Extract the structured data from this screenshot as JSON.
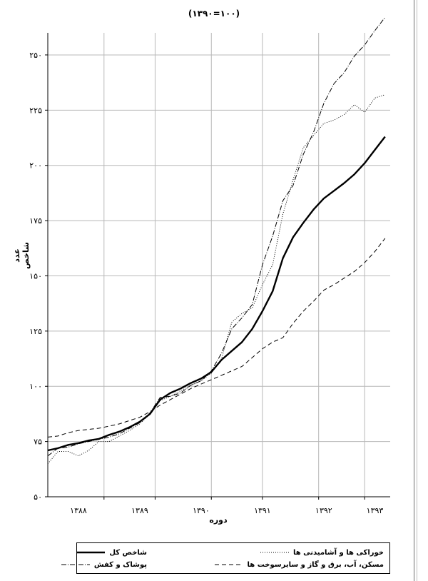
{
  "chart_data": {
    "type": "line",
    "title": "(۱۳۹۰=۱۰۰)",
    "xlabel": "دوره",
    "ylabel": "عدد شاخص",
    "ylim": [
      50,
      260
    ],
    "yticks": [
      50,
      75,
      100,
      125,
      150,
      175,
      200,
      225,
      250
    ],
    "ytick_labels": [
      "۵۰",
      "۷۵",
      "۱۰۰",
      "۱۲۵",
      "۱۵۰",
      "۱۷۵",
      "۲۰۰",
      "۲۲۵",
      "۲۵۰"
    ],
    "xlim": [
      0,
      67
    ],
    "xticks": [
      6,
      18,
      30,
      42,
      54,
      64
    ],
    "xtick_labels": [
      "۱۳۸۸",
      "۱۳۸۹",
      "۱۳۹۰",
      "۱۳۹۱",
      "۱۳۹۲",
      "۱۳۹۳"
    ],
    "grid": true,
    "legend_position": "bottom",
    "series": [
      {
        "name": "شاخص کل",
        "style": "solid",
        "values": [
          [
            0,
            71
          ],
          [
            2,
            72
          ],
          [
            4,
            73.5
          ],
          [
            6,
            74.3
          ],
          [
            8,
            75.5
          ],
          [
            10,
            76.2
          ],
          [
            12,
            78
          ],
          [
            14,
            79.5
          ],
          [
            16,
            81.5
          ],
          [
            18,
            84
          ],
          [
            20,
            87.5
          ],
          [
            22,
            94
          ],
          [
            24,
            97
          ],
          [
            26,
            99
          ],
          [
            28,
            101.5
          ],
          [
            30,
            103.5
          ],
          [
            32,
            106.5
          ],
          [
            34,
            112
          ],
          [
            36,
            116
          ],
          [
            38,
            120
          ],
          [
            40,
            126
          ],
          [
            42,
            134
          ],
          [
            44,
            143
          ],
          [
            46,
            158
          ],
          [
            48,
            167.5
          ],
          [
            50,
            174
          ],
          [
            52,
            180
          ],
          [
            54,
            185
          ],
          [
            56,
            188.5
          ],
          [
            58,
            192
          ],
          [
            60,
            196
          ],
          [
            62,
            201
          ],
          [
            64,
            207
          ],
          [
            66,
            213
          ]
        ]
      },
      {
        "name": "خوراکی ها و آشامیدنی ها",
        "style": "dotted",
        "values": [
          [
            0,
            65
          ],
          [
            2,
            70.5
          ],
          [
            4,
            70.5
          ],
          [
            6,
            68.5
          ],
          [
            8,
            71
          ],
          [
            10,
            75
          ],
          [
            12,
            75
          ],
          [
            14,
            77.5
          ],
          [
            16,
            80
          ],
          [
            18,
            83
          ],
          [
            20,
            87.5
          ],
          [
            22,
            93.5
          ],
          [
            24,
            95.5
          ],
          [
            26,
            98
          ],
          [
            28,
            100.5
          ],
          [
            30,
            102.5
          ],
          [
            32,
            106
          ],
          [
            34,
            112.5
          ],
          [
            36,
            129
          ],
          [
            38,
            133
          ],
          [
            40,
            135.5
          ],
          [
            42,
            146
          ],
          [
            44,
            155
          ],
          [
            46,
            178
          ],
          [
            48,
            193.5
          ],
          [
            50,
            208
          ],
          [
            52,
            213.5
          ],
          [
            54,
            219
          ],
          [
            56,
            220.5
          ],
          [
            58,
            223
          ],
          [
            60,
            227.5
          ],
          [
            62,
            224
          ],
          [
            64,
            230.5
          ],
          [
            66,
            232
          ]
        ]
      },
      {
        "name": "پوشاک و کفش",
        "style": "dashdot",
        "values": [
          [
            0,
            68.5
          ],
          [
            2,
            72
          ],
          [
            4,
            72.5
          ],
          [
            6,
            74
          ],
          [
            8,
            75
          ],
          [
            10,
            76
          ],
          [
            12,
            77
          ],
          [
            14,
            78.5
          ],
          [
            16,
            81
          ],
          [
            18,
            83.5
          ],
          [
            20,
            88
          ],
          [
            22,
            95
          ],
          [
            24,
            95.5
          ],
          [
            26,
            97
          ],
          [
            28,
            100.5
          ],
          [
            30,
            102.5
          ],
          [
            32,
            107
          ],
          [
            34,
            115
          ],
          [
            36,
            126
          ],
          [
            38,
            131
          ],
          [
            40,
            137
          ],
          [
            42,
            155
          ],
          [
            44,
            168
          ],
          [
            46,
            184
          ],
          [
            48,
            191
          ],
          [
            50,
            205
          ],
          [
            52,
            215
          ],
          [
            54,
            228
          ],
          [
            56,
            237
          ],
          [
            58,
            242
          ],
          [
            60,
            249.5
          ],
          [
            62,
            254.5
          ],
          [
            64,
            261
          ],
          [
            66,
            267
          ]
        ]
      },
      {
        "name": "مسکن، آب، برق و گاز و سایرسوخت ها",
        "style": "dashed",
        "values": [
          [
            0,
            77
          ],
          [
            2,
            77.5
          ],
          [
            4,
            79
          ],
          [
            6,
            80
          ],
          [
            8,
            80.5
          ],
          [
            10,
            81
          ],
          [
            12,
            82
          ],
          [
            14,
            83
          ],
          [
            16,
            84.5
          ],
          [
            18,
            86
          ],
          [
            20,
            88.5
          ],
          [
            22,
            91.5
          ],
          [
            24,
            94
          ],
          [
            26,
            96.5
          ],
          [
            28,
            99
          ],
          [
            30,
            101
          ],
          [
            32,
            103
          ],
          [
            34,
            105
          ],
          [
            36,
            107
          ],
          [
            38,
            109
          ],
          [
            40,
            113
          ],
          [
            42,
            117
          ],
          [
            44,
            120
          ],
          [
            46,
            122
          ],
          [
            48,
            128.5
          ],
          [
            50,
            134
          ],
          [
            52,
            138.5
          ],
          [
            54,
            143.5
          ],
          [
            56,
            146
          ],
          [
            58,
            149
          ],
          [
            60,
            152
          ],
          [
            62,
            156
          ],
          [
            64,
            161
          ],
          [
            66,
            167
          ]
        ]
      }
    ]
  }
}
